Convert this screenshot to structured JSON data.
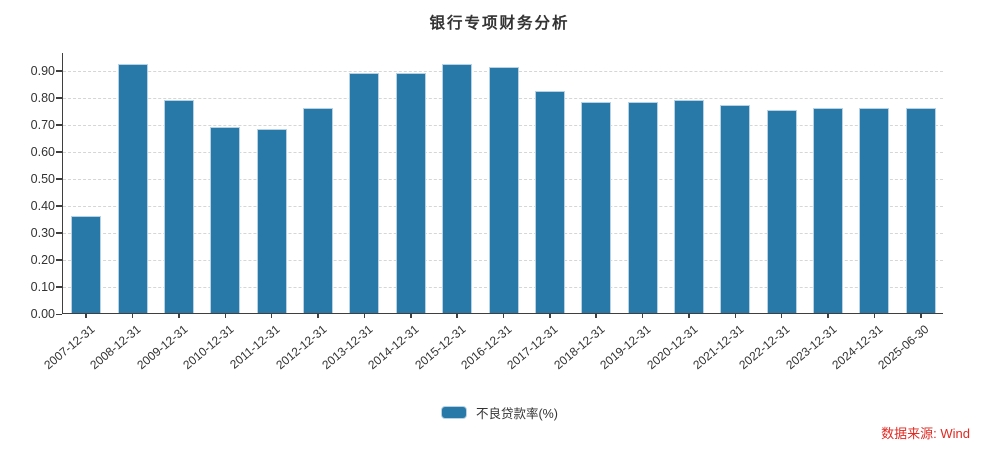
{
  "title": "银行专项财务分析",
  "legend": {
    "label": "不良贷款率(%)"
  },
  "source": {
    "text": "数据来源: Wind"
  },
  "colors": {
    "bar": "#2878a8",
    "bar_edge": "#b7d2e4",
    "grid": "#d6d6d6",
    "axis": "#3f3f3f",
    "text": "#333333",
    "source_red": "#e02a22"
  },
  "chart_data": {
    "type": "bar",
    "title": "银行专项财务分析",
    "xlabel": "",
    "ylabel": "",
    "categories": [
      "2007-12-31",
      "2008-12-31",
      "2009-12-31",
      "2010-12-31",
      "2011-12-31",
      "2012-12-31",
      "2013-12-31",
      "2014-12-31",
      "2015-12-31",
      "2016-12-31",
      "2017-12-31",
      "2018-12-31",
      "2019-12-31",
      "2020-12-31",
      "2021-12-31",
      "2022-12-31",
      "2023-12-31",
      "2024-12-31",
      "2025-06-30"
    ],
    "series": [
      {
        "name": "不良贷款率(%)",
        "values": [
          0.36,
          0.92,
          0.79,
          0.69,
          0.68,
          0.76,
          0.89,
          0.89,
          0.92,
          0.91,
          0.82,
          0.78,
          0.78,
          0.79,
          0.77,
          0.75,
          0.76,
          0.76,
          0.76
        ]
      }
    ],
    "ylim": [
      0,
      0.966
    ],
    "yticks": [
      0.0,
      0.1,
      0.2,
      0.3,
      0.4,
      0.5,
      0.6,
      0.7,
      0.8,
      0.9
    ],
    "ytick_format": "2dp",
    "grid": "dashed-horizontal",
    "legend_position": "bottom-center",
    "source_note": "数据来源: Wind"
  }
}
